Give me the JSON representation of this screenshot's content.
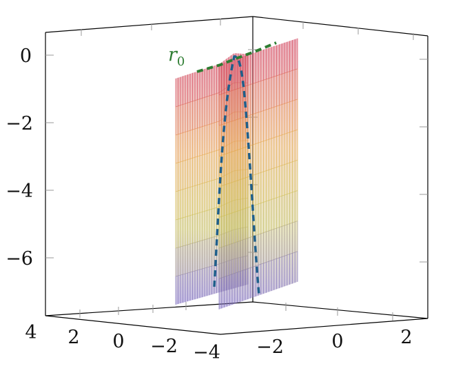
{
  "chart_data": {
    "type": "surface3d",
    "title": "",
    "z_axis": {
      "ticks": [
        0,
        -2,
        -4,
        -6
      ],
      "tick_labels": [
        "0",
        "−2",
        "−4",
        "−6"
      ],
      "range": [
        -7.5,
        0.7
      ]
    },
    "x_axis": {
      "ticks": [
        4,
        2,
        0,
        -2,
        -4
      ],
      "tick_labels": [
        "4",
        "2",
        "0",
        "−2",
        "−4"
      ]
    },
    "y_axis": {
      "ticks": [
        -2,
        0,
        2
      ],
      "tick_labels": [
        "−2",
        "0",
        "2"
      ]
    },
    "annotation": {
      "text": "r",
      "subscript": "0",
      "color": "#2e7d32"
    },
    "colormap": [
      "#6a5acd",
      "#c9c04a",
      "#e8a03c",
      "#d2335a"
    ],
    "curves": [
      {
        "name": "",
        "style": "dashed",
        "color": "#2e7d32",
        "role": "top-edge"
      },
      {
        "name": "",
        "style": "dashed",
        "color": "#1f5f8b",
        "role": "ridge"
      }
    ],
    "grid": false
  }
}
